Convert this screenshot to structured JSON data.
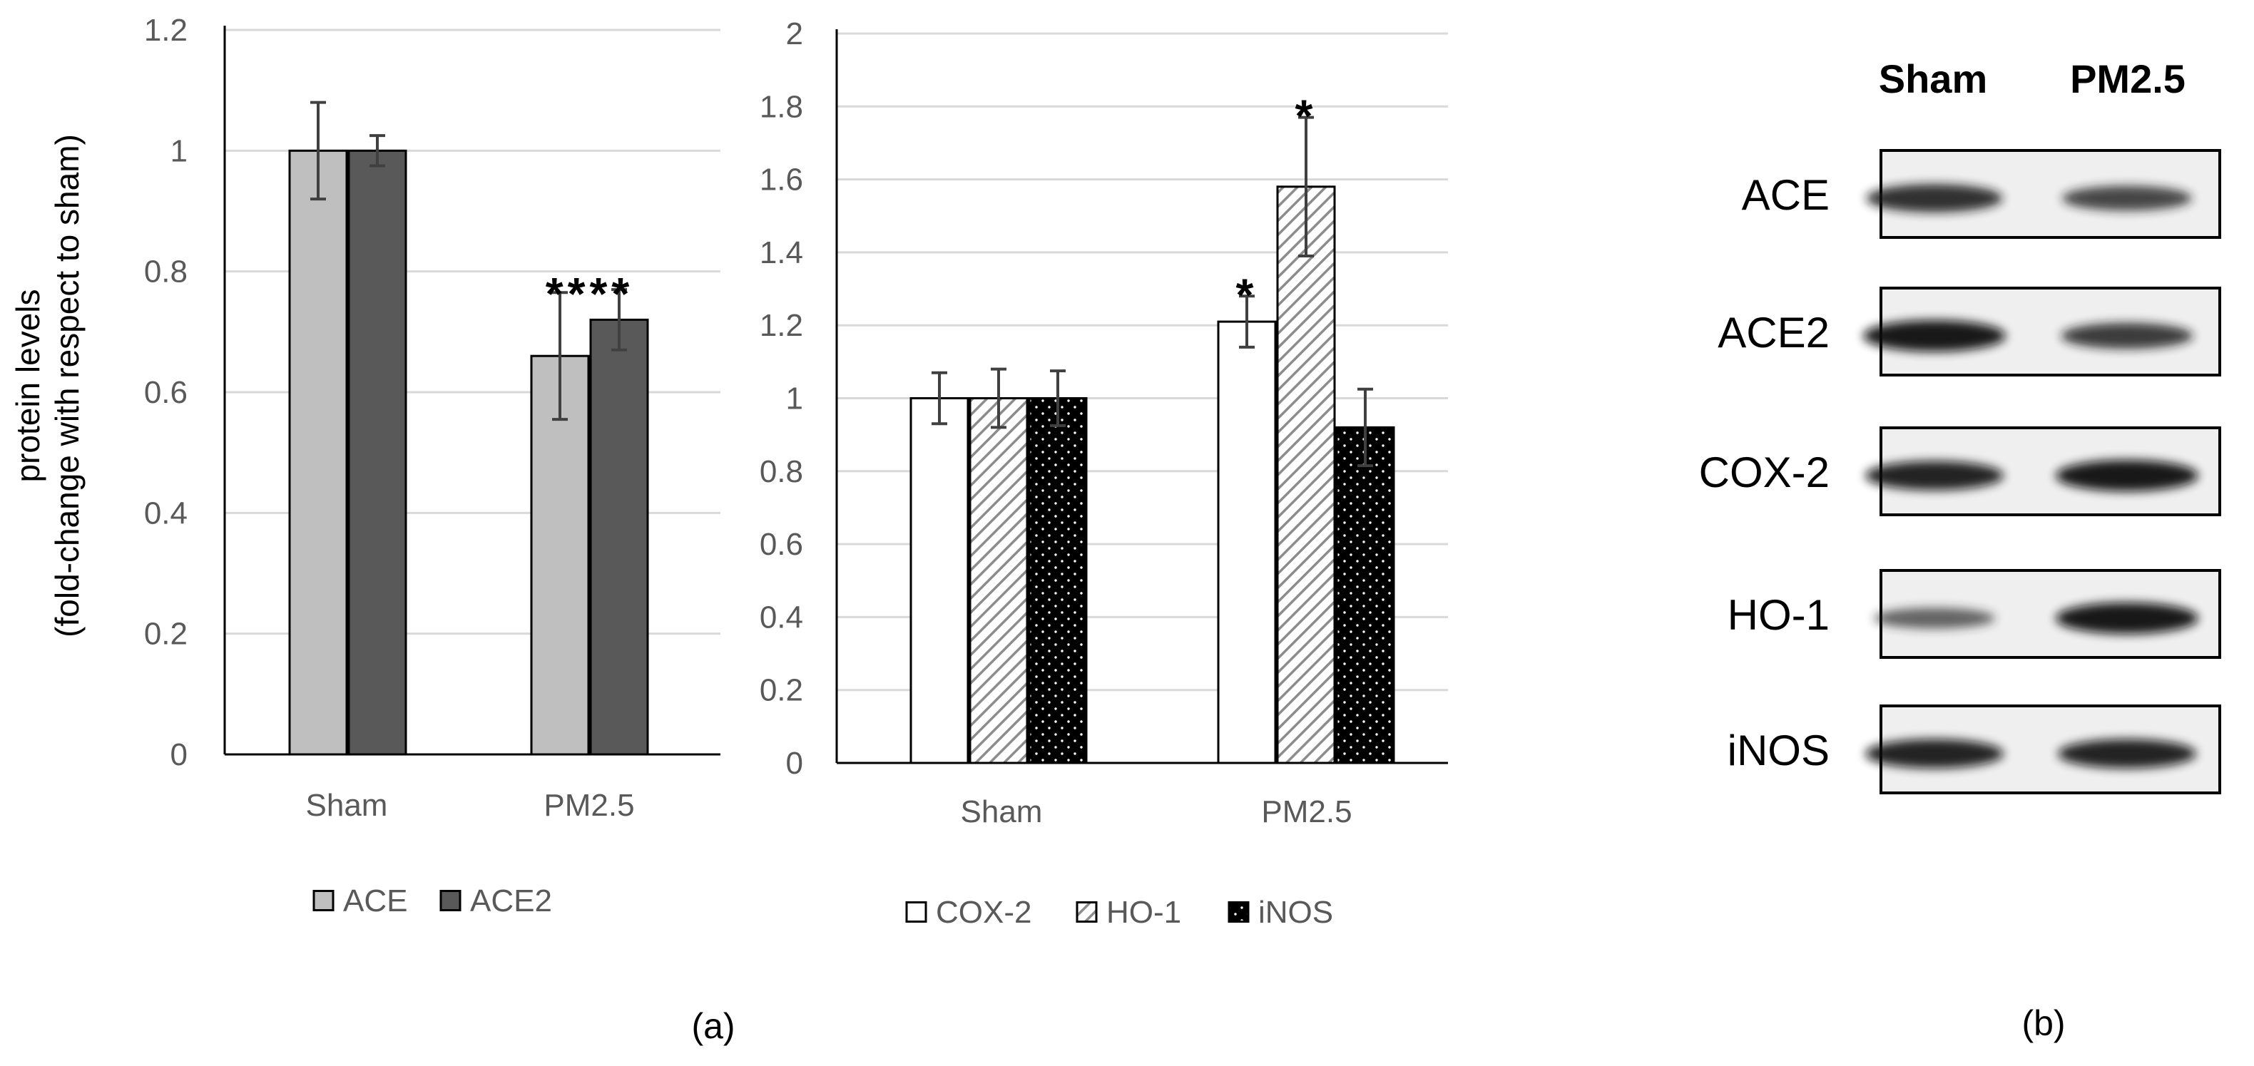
{
  "figure": {
    "panel_a_label": "(a)",
    "panel_b_label": "(b)"
  },
  "chart_data": [
    {
      "type": "bar",
      "title": "",
      "xlabel": "",
      "ylabel": "protein levels",
      "ylabel2": "(fold-change with respect to sham)",
      "ylim": [
        0,
        1.2
      ],
      "yticks": [
        0,
        0.2,
        0.4,
        0.6,
        0.8,
        1,
        1.2
      ],
      "ytick_labels": [
        "0",
        "0.2",
        "0.4",
        "0.6",
        "0.8",
        "1",
        "1.2"
      ],
      "gridlines": true,
      "categories": [
        "Sham",
        "PM2.5"
      ],
      "series": [
        {
          "name": "ACE",
          "values": [
            1.0,
            0.66
          ],
          "errors": [
            0.08,
            0.105
          ],
          "color": "#bfbfbf",
          "pattern": "solid"
        },
        {
          "name": "ACE2",
          "values": [
            1.0,
            0.72
          ],
          "errors": [
            0.025,
            0.05
          ],
          "color": "#595959",
          "pattern": "solid"
        }
      ],
      "annotations": [
        {
          "category": "PM2.5",
          "text": "****"
        }
      ],
      "legend": "bottom"
    },
    {
      "type": "bar",
      "title": "",
      "xlabel": "",
      "ylabel": "",
      "ylim": [
        0,
        2
      ],
      "yticks": [
        0,
        0.2,
        0.4,
        0.6,
        0.8,
        1,
        1.2,
        1.4,
        1.6,
        1.8,
        2
      ],
      "ytick_labels": [
        "0",
        "0.2",
        "0.4",
        "0.6",
        "0.8",
        "1",
        "1.2",
        "1.4",
        "1.6",
        "1.8",
        "2"
      ],
      "gridlines": true,
      "categories": [
        "Sham",
        "PM2.5"
      ],
      "series": [
        {
          "name": "COX-2",
          "values": [
            1.0,
            1.21
          ],
          "errors": [
            0.07,
            0.07
          ],
          "color": "#ffffff",
          "pattern": "solid"
        },
        {
          "name": "HO-1",
          "values": [
            1.0,
            1.58
          ],
          "errors": [
            0.08,
            0.19
          ],
          "color": "#ffffff",
          "pattern": "diagonal-hatch"
        },
        {
          "name": "iNOS",
          "values": [
            1.0,
            0.92
          ],
          "errors": [
            0.075,
            0.105
          ],
          "color": "#000000",
          "pattern": "dots"
        }
      ],
      "annotations": [
        {
          "category": "PM2.5",
          "series": "COX-2",
          "text": "*"
        },
        {
          "category": "PM2.5",
          "series": "HO-1",
          "text": "*"
        }
      ],
      "legend": "bottom"
    }
  ],
  "blot": {
    "columns": [
      "Sham",
      "PM2.5"
    ],
    "rows": [
      {
        "label": "ACE",
        "sham_intensity": 0.85,
        "pm_intensity": 0.7
      },
      {
        "label": "ACE2",
        "sham_intensity": 1.0,
        "pm_intensity": 0.75
      },
      {
        "label": "COX-2",
        "sham_intensity": 0.9,
        "pm_intensity": 1.0
      },
      {
        "label": "HO-1",
        "sham_intensity": 0.5,
        "pm_intensity": 1.0
      },
      {
        "label": "iNOS",
        "sham_intensity": 0.9,
        "pm_intensity": 0.9
      }
    ]
  }
}
